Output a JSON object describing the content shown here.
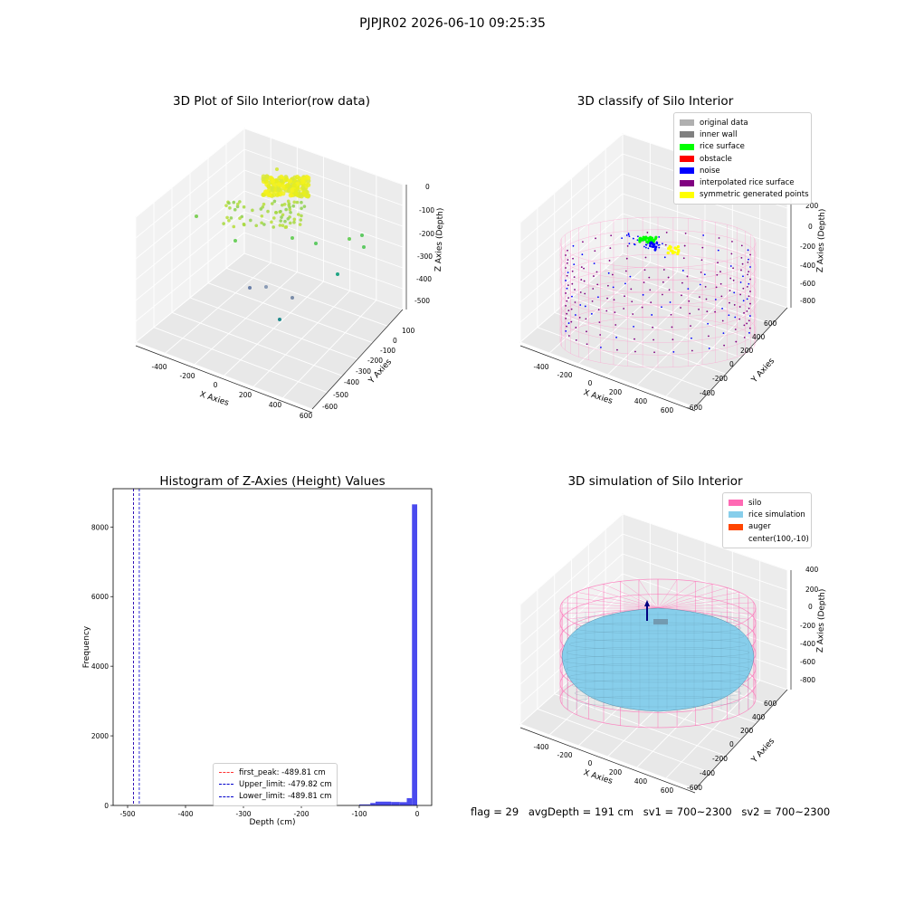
{
  "figure_title": "PJPJR02 2026-06-10 09:25:35",
  "footer": {
    "flag": "flag = 29",
    "avg_depth": "avgDepth = 191 cm",
    "sv1": "sv1 = 700~2300",
    "sv2": "sv2 = 700~2300"
  },
  "colors": {
    "original": "#b0b0b0",
    "inner_wall": "#808080",
    "rice_surface": "#00ff00",
    "obstacle": "#ff0000",
    "noise": "#0000ff",
    "interpolated": "#800080",
    "symmetric": "#ffff00",
    "silo": "#ff69b4",
    "rice_sim": "#87ceeb",
    "auger": "#ff4500",
    "hist_bar": "#4a4aee"
  },
  "chart_data": [
    {
      "type": "scatter",
      "title": "3D Plot of Silo Interior(row data)",
      "xlabel": "X Axies",
      "ylabel": "Y Axies",
      "zlabel": "Z Axies (Depth)",
      "x_ticks": [
        "-400",
        "-200",
        "0",
        "200",
        "400",
        "600"
      ],
      "y_ticks": [
        "100",
        "0",
        "-100",
        "-200",
        "-300",
        "-400",
        "-500",
        "-600"
      ],
      "z_ticks": [
        "0",
        "-100",
        "-200",
        "-300",
        "-400",
        "-500"
      ],
      "grid": true
    },
    {
      "type": "scatter",
      "title": "3D classify of Silo Interior",
      "xlabel": "X Axies",
      "ylabel": "Y Axies",
      "zlabel": "Z Axies (Depth)",
      "x_ticks": [
        "-400",
        "-200",
        "0",
        "200",
        "400",
        "600"
      ],
      "y_ticks": [
        "600",
        "400",
        "200",
        "0",
        "-200",
        "-400",
        "-600"
      ],
      "z_ticks": [
        "200",
        "0",
        "-200",
        "-400",
        "-600",
        "-800"
      ],
      "legend_position": "top-right",
      "legend": [
        "original data",
        "inner wall",
        "rice surface",
        "obstacle",
        "noise",
        "interpolated rice surface",
        "symmetric generated points"
      ],
      "grid": true
    },
    {
      "type": "bar",
      "title": "Histogram of Z-Axies (Height) Values",
      "xlabel": "Depth (cm)",
      "ylabel": "Frequency",
      "xlim": [
        -525,
        25
      ],
      "ylim": [
        0,
        9100
      ],
      "x_ticks": [
        "-500",
        "-400",
        "-300",
        "-200",
        "-100",
        "0"
      ],
      "y_ticks": [
        "0",
        "2000",
        "4000",
        "6000",
        "8000"
      ],
      "bins": [
        {
          "x0": -100,
          "x1": -81,
          "count": 30
        },
        {
          "x0": -81,
          "x1": -72,
          "count": 70
        },
        {
          "x0": -72,
          "x1": -45,
          "count": 110
        },
        {
          "x0": -45,
          "x1": -30,
          "count": 100
        },
        {
          "x0": -30,
          "x1": -18,
          "count": 95
        },
        {
          "x0": -18,
          "x1": -9,
          "count": 210
        },
        {
          "x0": -9,
          "x1": 0,
          "count": 8650
        }
      ],
      "vlines": [
        {
          "label": "first_peak: -489.81 cm",
          "x": -489.81,
          "color": "#ff3333"
        },
        {
          "label": "Upper_limit: -479.82 cm",
          "x": -479.82,
          "color": "#0000cc"
        },
        {
          "label": "Lower_limit: -489.81 cm",
          "x": -489.81,
          "color": "#0000cc"
        }
      ],
      "legend_position": "bottom-center"
    },
    {
      "type": "surface",
      "title": "3D simulation of Silo Interior",
      "xlabel": "X Axies",
      "ylabel": "Y Axies",
      "zlabel": "Z Axies (Depth)",
      "x_ticks": [
        "-400",
        "-200",
        "0",
        "200",
        "400",
        "600"
      ],
      "y_ticks": [
        "600",
        "400",
        "200",
        "0",
        "-200",
        "-400",
        "-600"
      ],
      "z_ticks": [
        "400",
        "200",
        "0",
        "-200",
        "-400",
        "-600",
        "-800"
      ],
      "legend_position": "top-right",
      "legend": [
        "silo",
        "rice simulation",
        "auger",
        "center(100,-10)"
      ],
      "grid": true
    }
  ]
}
